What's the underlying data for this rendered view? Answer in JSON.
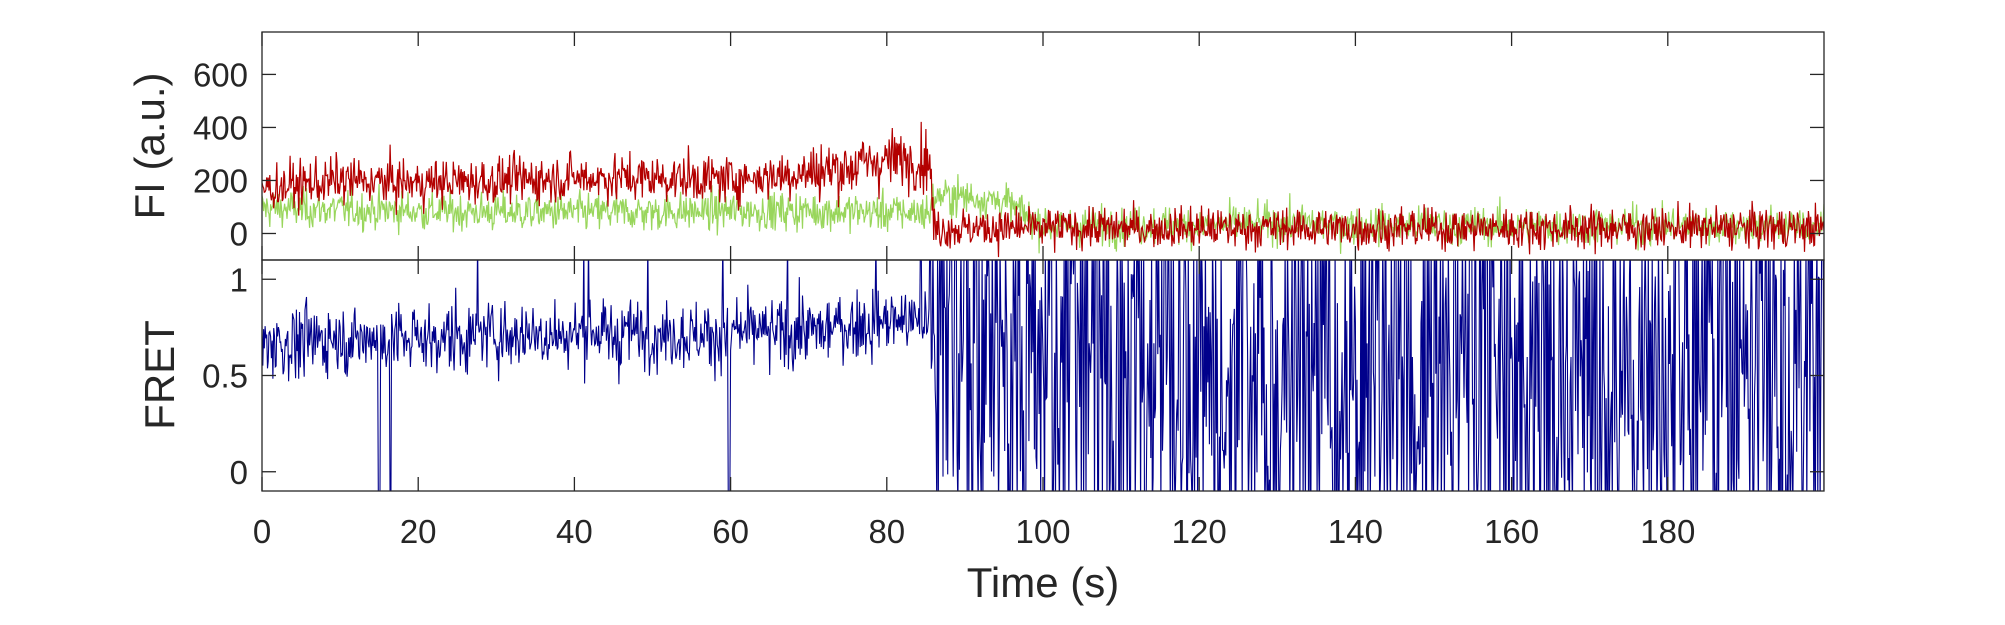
{
  "chart_data": [
    {
      "type": "line",
      "panel": "top",
      "title": "",
      "xlabel": "",
      "ylabel": "FI (a.u.)",
      "xlim": [
        0,
        200
      ],
      "ylim": [
        -100,
        760
      ],
      "yticks": [
        0,
        200,
        400,
        600
      ],
      "ytick_labels": [
        "0",
        "200",
        "400",
        "600"
      ],
      "xticks_shown": false,
      "grid": false,
      "legend": "none",
      "series": [
        {
          "color": "#99d65c",
          "x": [
            0,
            10,
            20,
            30,
            40,
            50,
            60,
            70,
            80,
            85.5,
            86,
            90,
            95,
            100,
            110,
            120,
            130,
            140,
            150,
            160,
            170,
            180,
            190,
            200
          ],
          "values": [
            95,
            90,
            85,
            80,
            80,
            80,
            85,
            85,
            80,
            80,
            140,
            140,
            120,
            30,
            30,
            30,
            40,
            30,
            30,
            30,
            30,
            30,
            30,
            30
          ]
        },
        {
          "color": "#b30000",
          "x": [
            0,
            10,
            20,
            30,
            40,
            50,
            60,
            70,
            75,
            80,
            85.5,
            86,
            90,
            100,
            110,
            120,
            130,
            140,
            150,
            160,
            170,
            180,
            190,
            200
          ],
          "values": [
            170,
            200,
            190,
            200,
            210,
            210,
            205,
            230,
            250,
            280,
            280,
            20,
            20,
            20,
            20,
            20,
            20,
            20,
            20,
            20,
            20,
            20,
            20,
            20
          ]
        }
      ]
    },
    {
      "type": "line",
      "panel": "bottom",
      "title": "",
      "xlabel": "Time (s)",
      "ylabel": "FRET",
      "xlim": [
        0,
        200
      ],
      "ylim": [
        -0.1,
        1.1
      ],
      "xticks": [
        0,
        20,
        40,
        60,
        80,
        100,
        120,
        140,
        160,
        180
      ],
      "xtick_labels": [
        "0",
        "20",
        "40",
        "60",
        "80",
        "100",
        "120",
        "140",
        "160",
        "180"
      ],
      "yticks": [
        0,
        0.5,
        1
      ],
      "ytick_labels": [
        "0",
        "0.5",
        "1"
      ],
      "grid": false,
      "legend": "none",
      "series": [
        {
          "color": "#00008b",
          "x": [
            0,
            10,
            20,
            30,
            40,
            50,
            60,
            70,
            80,
            85.5,
            86,
            100,
            120,
            140,
            160,
            180,
            200
          ],
          "values": [
            0.66,
            0.69,
            0.69,
            0.71,
            0.72,
            0.72,
            0.71,
            0.73,
            0.78,
            0.78,
            0.4,
            0.45,
            0.45,
            0.45,
            0.45,
            0.45,
            0.45
          ]
        }
      ]
    }
  ]
}
